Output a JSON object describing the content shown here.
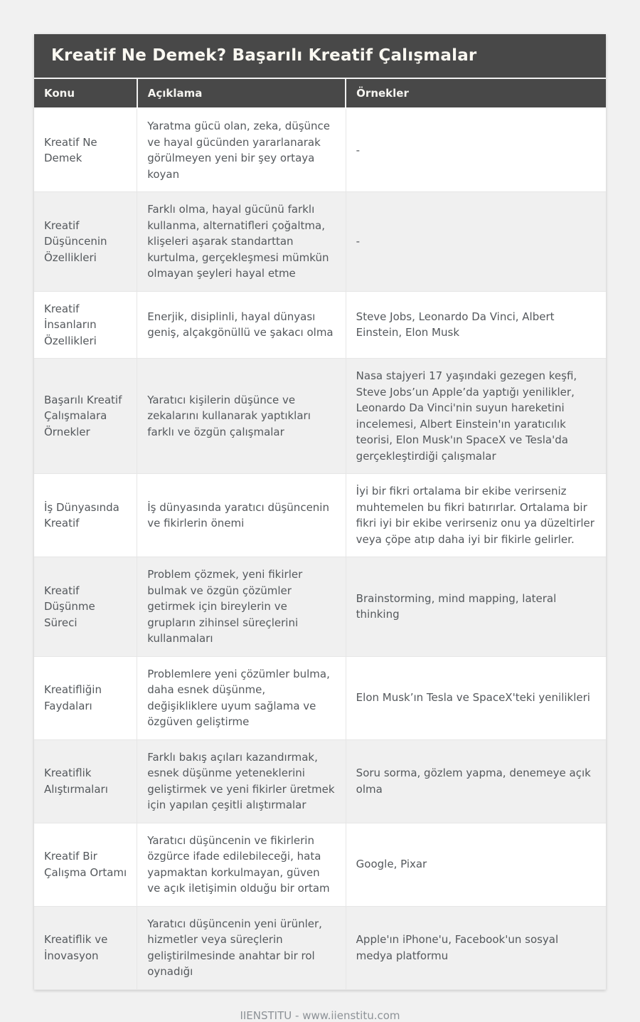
{
  "page": {
    "title": "Kreatif Ne Demek? Başarılı Kreatif Çalışmalar",
    "footer": "IIENSTITU - www.iienstitu.com"
  },
  "colors": {
    "header_bg": "#484848",
    "title_text": "#faf8f1",
    "page_bg": "#f1f1f1",
    "alt_row_bg": "#f0f0f0",
    "body_text": "#54585c",
    "footer_text": "#8d9297"
  },
  "table": {
    "columns": [
      "Konu",
      "Açıklama",
      "Örnekler"
    ],
    "rows": [
      {
        "topic": "Kreatif Ne Demek",
        "description": "Yaratma gücü olan, zeka, düşünce ve hayal gücünden yararlanarak görülmeyen yeni bir şey ortaya koyan",
        "examples": "-"
      },
      {
        "topic": "Kreatif Düşüncenin Özellikleri",
        "description": "Farklı olma, hayal gücünü farklı kullanma, alternatifleri çoğaltma, klişeleri aşarak standarttan kurtulma, gerçekleşmesi mümkün olmayan şeyleri hayal etme",
        "examples": "-"
      },
      {
        "topic": "Kreatif İnsanların Özellikleri",
        "description": "Enerjik, disiplinli, hayal dünyası geniş, alçakgönüllü ve şakacı olma",
        "examples": "Steve Jobs, Leonardo Da Vinci, Albert Einstein, Elon Musk"
      },
      {
        "topic": "Başarılı Kreatif Çalışmalara Örnekler",
        "description": "Yaratıcı kişilerin düşünce ve zekalarını kullanarak yaptıkları farklı ve özgün çalışmalar",
        "examples": "Nasa stajyeri 17 yaşındaki gezegen keşfi, Steve Jobs’un Apple’da yaptığı yenilikler, Leonardo Da Vinci'nin suyun hareketini incelemesi, Albert Einstein'ın yaratıcılık teorisi, Elon Musk'ın SpaceX ve Tesla'da gerçekleştirdiği çalışmalar"
      },
      {
        "topic": "İş Dünyasında Kreatif",
        "description": "İş dünyasında yaratıcı düşüncenin ve fikirlerin önemi",
        "examples": "İyi bir fikri ortalama bir ekibe verirseniz muhtemelen bu fikri batırırlar. Ortalama bir fikri iyi bir ekibe verirseniz onu ya düzeltirler veya çöpe atıp daha iyi bir fikirle gelirler."
      },
      {
        "topic": "Kreatif Düşünme Süreci",
        "description": "Problem çözmek, yeni fikirler bulmak ve özgün çözümler getirmek için bireylerin ve grupların zihinsel süreçlerini kullanmaları",
        "examples": "Brainstorming, mind mapping, lateral thinking"
      },
      {
        "topic": "Kreatifliğin Faydaları",
        "description": "Problemlere yeni çözümler bulma, daha esnek düşünme, değişikliklere uyum sağlama ve özgüven geliştirme",
        "examples": "Elon Musk’ın Tesla ve SpaceX'teki yenilikleri"
      },
      {
        "topic": "Kreatiflik Alıştırmaları",
        "description": "Farklı bakış açıları kazandırmak, esnek düşünme yeteneklerini geliştirmek ve yeni fikirler üretmek için yapılan çeşitli alıştırmalar",
        "examples": "Soru sorma, gözlem yapma, denemeye açık olma"
      },
      {
        "topic": "Kreatif Bir Çalışma Ortamı",
        "description": "Yaratıcı düşüncenin ve fikirlerin özgürce ifade edilebileceği, hata yapmaktan korkulmayan, güven ve açık iletişimin olduğu bir ortam",
        "examples": "Google, Pixar"
      },
      {
        "topic": "Kreatiflik ve İnovasyon",
        "description": "Yaratıcı düşüncenin yeni ürünler, hizmetler veya süreçlerin geliştirilmesinde anahtar bir rol oynadığı",
        "examples": "Apple'ın iPhone'u, Facebook'un sosyal medya platformu"
      }
    ]
  }
}
